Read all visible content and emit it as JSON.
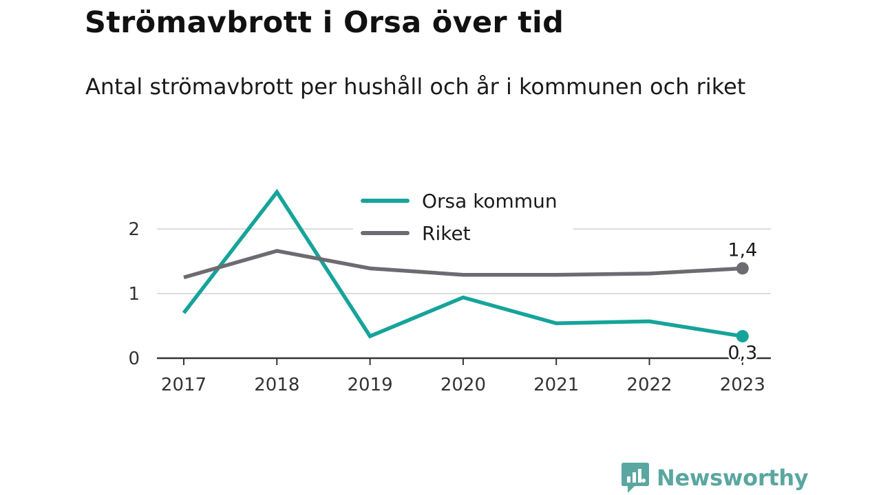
{
  "header": {
    "title": "Strömavbrott i Orsa över tid",
    "subtitle": "Antal strömavbrott per hushåll och år i kommunen och riket"
  },
  "branding": {
    "name": "Newsworthy",
    "logo_icon": "bar-chart-speech-bubble-icon",
    "color": "#5aa6a0"
  },
  "chart_data": {
    "type": "line",
    "x": [
      "2017",
      "2018",
      "2019",
      "2020",
      "2021",
      "2022",
      "2023"
    ],
    "series": [
      {
        "name": "Orsa kommun",
        "color": "#16a39a",
        "values": [
          0.7,
          2.57,
          0.34,
          0.94,
          0.54,
          0.57,
          0.34
        ],
        "end_label": "0,3"
      },
      {
        "name": "Riket",
        "color": "#6d6b72",
        "values": [
          1.25,
          1.66,
          1.39,
          1.29,
          1.29,
          1.31,
          1.39
        ],
        "end_label": "1,4"
      }
    ],
    "ylim": [
      0,
      2.8
    ],
    "yticks": [
      {
        "value": 0,
        "label": "0"
      },
      {
        "value": 1,
        "label": "1"
      },
      {
        "value": 2,
        "label": "2"
      }
    ],
    "grid": true,
    "legend_position": "top-center"
  }
}
